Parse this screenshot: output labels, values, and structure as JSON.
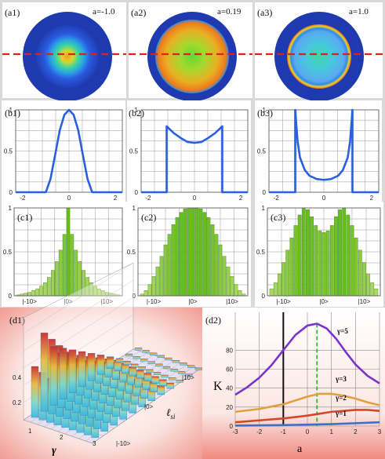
{
  "panels": {
    "a1": {
      "label": "(a1)",
      "param": "a=-1.0"
    },
    "a2": {
      "label": "(a2)",
      "param": "a=0.19"
    },
    "a3": {
      "label": "(a3)",
      "param": "a=1.0"
    },
    "b1": {
      "label": "(b1)"
    },
    "b2": {
      "label": "(b2)"
    },
    "b3": {
      "label": "(b3)"
    },
    "c1": {
      "label": "(c1)"
    },
    "c2": {
      "label": "(c2)"
    },
    "c3": {
      "label": "(c3)"
    },
    "d1": {
      "label": "(d1)",
      "xlabel": "γ",
      "ylabel": "ℓ",
      "ylabel_sub": "si"
    },
    "d2": {
      "label": "(d2)",
      "xlabel": "a",
      "ylabel": "K"
    }
  },
  "b_axes": {
    "x_ticks": [
      "-2",
      "0",
      "2"
    ],
    "y_ticks": [
      "0",
      "0.5",
      "1"
    ]
  },
  "c_axes": {
    "x_ticks": [
      "|-10>",
      "|0>",
      "|10>"
    ],
    "y_ticks": [
      "0",
      "0.5",
      "1"
    ]
  },
  "d1_axes": {
    "x_ticks": [
      "1",
      "2",
      "3"
    ],
    "y_ticks": [
      "0.2",
      "0.4"
    ],
    "z_ticks": [
      "|10>",
      "|0>",
      "|-10>"
    ]
  },
  "chart_data": [
    {
      "id": "b1",
      "type": "line",
      "xlim": [
        -2.3,
        2.3
      ],
      "ylim": [
        0,
        1
      ],
      "series": [
        {
          "x": [
            -2.3,
            -1.0,
            -0.8,
            -0.6,
            -0.4,
            -0.2,
            0,
            0.2,
            0.4,
            0.6,
            0.8,
            1.0,
            2.3
          ],
          "y": [
            0,
            0,
            0.16,
            0.45,
            0.75,
            0.94,
            1.0,
            0.94,
            0.75,
            0.45,
            0.16,
            0,
            0
          ]
        }
      ]
    },
    {
      "id": "b2",
      "type": "line",
      "xlim": [
        -2.3,
        2.3
      ],
      "ylim": [
        0,
        1
      ],
      "series": [
        {
          "x": [
            -2.3,
            -1.2,
            -1.2,
            -0.9,
            -0.6,
            -0.3,
            0,
            0.3,
            0.6,
            0.9,
            1.2,
            1.2,
            2.3
          ],
          "y": [
            0,
            0,
            0.8,
            0.72,
            0.66,
            0.61,
            0.6,
            0.61,
            0.66,
            0.72,
            0.8,
            0,
            0
          ]
        }
      ]
    },
    {
      "id": "b3",
      "type": "line",
      "xlim": [
        -2.3,
        2.3
      ],
      "ylim": [
        0,
        1
      ],
      "series": [
        {
          "x": [
            -2.3,
            -1.2,
            -1.2,
            -1.1,
            -1.0,
            -0.8,
            -0.6,
            -0.3,
            0,
            0.3,
            0.6,
            0.8,
            1.0,
            1.1,
            1.2,
            1.2,
            2.3
          ],
          "y": [
            0,
            0,
            1.0,
            0.62,
            0.42,
            0.27,
            0.2,
            0.16,
            0.15,
            0.16,
            0.2,
            0.27,
            0.42,
            0.62,
            1.0,
            0,
            0
          ]
        }
      ]
    },
    {
      "id": "c1",
      "type": "bar",
      "xlim": [
        -14,
        14
      ],
      "ylim": [
        0,
        1
      ],
      "x": [
        -13,
        -12,
        -11,
        -10,
        -9,
        -8,
        -7,
        -6,
        -5,
        -4,
        -3,
        -2,
        -1,
        0,
        1,
        2,
        3,
        4,
        5,
        6,
        7,
        8,
        9,
        10,
        11,
        12,
        13
      ],
      "values": [
        0.01,
        0.02,
        0.03,
        0.04,
        0.06,
        0.08,
        0.11,
        0.15,
        0.21,
        0.29,
        0.39,
        0.52,
        0.7,
        1.0,
        0.7,
        0.52,
        0.39,
        0.29,
        0.21,
        0.15,
        0.11,
        0.08,
        0.06,
        0.04,
        0.03,
        0.02,
        0.01
      ]
    },
    {
      "id": "c2",
      "type": "bar",
      "xlim": [
        -14,
        14
      ],
      "ylim": [
        0,
        1
      ],
      "x": [
        -13,
        -12,
        -11,
        -10,
        -9,
        -8,
        -7,
        -6,
        -5,
        -4,
        -3,
        -2,
        -1,
        0,
        1,
        2,
        3,
        4,
        5,
        6,
        7,
        8,
        9,
        10,
        11,
        12,
        13
      ],
      "values": [
        0.02,
        0.06,
        0.13,
        0.22,
        0.33,
        0.45,
        0.58,
        0.7,
        0.81,
        0.89,
        0.95,
        0.99,
        1.0,
        1.0,
        1.0,
        0.99,
        0.95,
        0.89,
        0.81,
        0.7,
        0.58,
        0.45,
        0.33,
        0.22,
        0.13,
        0.06,
        0.02
      ]
    },
    {
      "id": "c3",
      "type": "bar",
      "xlim": [
        -14,
        14
      ],
      "ylim": [
        0,
        1
      ],
      "x": [
        -13,
        -12,
        -11,
        -10,
        -9,
        -8,
        -7,
        -6,
        -5,
        -4,
        -3,
        -2,
        -1,
        0,
        1,
        2,
        3,
        4,
        5,
        6,
        7,
        8,
        9,
        10,
        11,
        12,
        13
      ],
      "values": [
        0.08,
        0.15,
        0.25,
        0.38,
        0.52,
        0.66,
        0.8,
        0.92,
        1.0,
        0.98,
        0.9,
        0.8,
        0.74,
        0.72,
        0.74,
        0.8,
        0.9,
        0.98,
        1.0,
        0.92,
        0.8,
        0.66,
        0.52,
        0.38,
        0.25,
        0.15,
        0.08
      ]
    },
    {
      "id": "d2",
      "type": "line",
      "xlim": [
        -3,
        3
      ],
      "ylim": [
        0,
        120
      ],
      "x_ticks": [
        -3,
        -2,
        -1,
        0,
        1,
        2,
        3
      ],
      "y_ticks": [
        0,
        20,
        40,
        60,
        80
      ],
      "vertical_lines": [
        {
          "x": -1,
          "style": "solid"
        },
        {
          "x": 0.4,
          "style": "dashed"
        }
      ],
      "series": [
        {
          "name": "γ=5",
          "color": "#7a33cc",
          "x": [
            -3,
            -2.5,
            -2,
            -1.5,
            -1,
            -0.5,
            0,
            0.4,
            0.8,
            1.2,
            1.6,
            2,
            2.5,
            3
          ],
          "y": [
            33,
            41,
            51,
            64,
            80,
            96,
            106,
            108,
            103,
            92,
            78,
            65,
            53,
            45
          ]
        },
        {
          "name": "γ=3",
          "color": "#e0a040",
          "x": [
            -3,
            -2,
            -1,
            -0.5,
            0,
            0.5,
            1,
            1.5,
            2,
            2.5,
            3
          ],
          "y": [
            15,
            18,
            23,
            27,
            31,
            34,
            34,
            32,
            29,
            25,
            22
          ]
        },
        {
          "name": "γ=2",
          "color": "#d2482a",
          "x": [
            -3,
            -2,
            -1,
            0,
            0.5,
            1,
            1.5,
            2,
            2.5,
            3
          ],
          "y": [
            4,
            6,
            8,
            11,
            13,
            15,
            16,
            17,
            17,
            16
          ]
        },
        {
          "name": "γ=1",
          "color": "#3b6fc9",
          "x": [
            -3,
            -1,
            0,
            1,
            2,
            3
          ],
          "y": [
            0.5,
            1,
            1.5,
            2,
            3,
            4
          ]
        }
      ]
    }
  ]
}
